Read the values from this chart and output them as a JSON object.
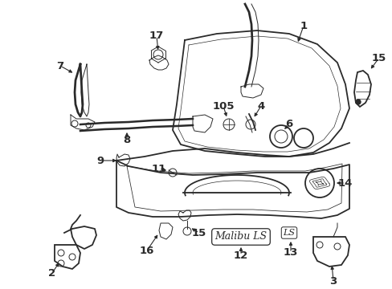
{
  "bg_color": "#ffffff",
  "lc": "#2a2a2a",
  "figsize": [
    4.89,
    3.6
  ],
  "dpi": 100
}
